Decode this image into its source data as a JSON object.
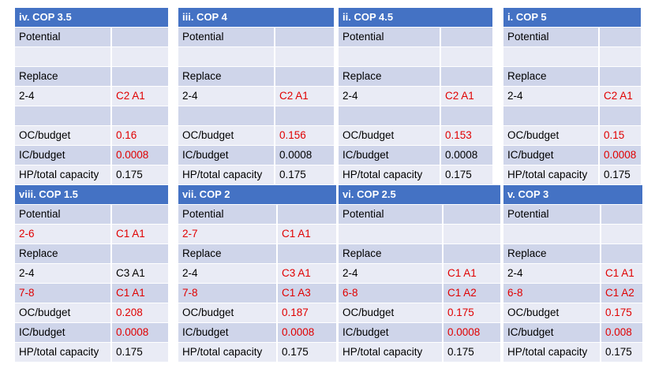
{
  "colors": {
    "header": "#4472c4",
    "row_shaded": "#cfd5ea",
    "row_light": "#e9ebf5",
    "highlight": "#e00000"
  },
  "panels": [
    {
      "title": "iv. COP 3.5",
      "rows": [
        {
          "label": "Potential",
          "value": ""
        },
        {
          "label": "",
          "value": ""
        },
        {
          "label": "Replace",
          "value": ""
        },
        {
          "label": "2-4",
          "value": "C2 A1",
          "value_red": true
        },
        {
          "label": "",
          "value": ""
        },
        {
          "label": "OC/budget",
          "value": "0.16",
          "value_red": true
        },
        {
          "label": "IC/budget",
          "value": "0.0008",
          "value_red": true
        },
        {
          "label": "HP/total capacity",
          "value": "0.175"
        }
      ]
    },
    {
      "title": "iii. COP 4",
      "rows": [
        {
          "label": "Potential",
          "value": ""
        },
        {
          "label": "",
          "value": ""
        },
        {
          "label": "Replace",
          "value": ""
        },
        {
          "label": "2-4",
          "value": "C2 A1",
          "value_red": true
        },
        {
          "label": "",
          "value": ""
        },
        {
          "label": "OC/budget",
          "value": "0.156",
          "value_red": true
        },
        {
          "label": "IC/budget",
          "value": "0.0008"
        },
        {
          "label": "HP/total capacity",
          "value": "0.175"
        }
      ]
    },
    {
      "title": "ii. COP 4.5",
      "rows": [
        {
          "label": "Potential",
          "value": ""
        },
        {
          "label": "",
          "value": ""
        },
        {
          "label": "Replace",
          "value": ""
        },
        {
          "label": "2-4",
          "value": "C2 A1",
          "value_red": true
        },
        {
          "label": "",
          "value": ""
        },
        {
          "label": "OC/budget",
          "value": "0.153",
          "value_red": true
        },
        {
          "label": "IC/budget",
          "value": "0.0008"
        },
        {
          "label": "HP/total capacity",
          "value": "0.175"
        }
      ]
    },
    {
      "title": "i. COP 5",
      "rows": [
        {
          "label": "Potential",
          "value": ""
        },
        {
          "label": "",
          "value": ""
        },
        {
          "label": "Replace",
          "value": ""
        },
        {
          "label": "2-4",
          "value": "C2 A1",
          "value_red": true
        },
        {
          "label": "",
          "value": ""
        },
        {
          "label": "OC/budget",
          "value": "0.15",
          "value_red": true
        },
        {
          "label": "IC/budget",
          "value": "0.0008",
          "value_red": true
        },
        {
          "label": "HP/total capacity",
          "value": "0.175"
        }
      ]
    },
    {
      "title": "viii. COP 1.5",
      "rows": [
        {
          "label": "Potential",
          "value": ""
        },
        {
          "label": "2-6",
          "value": "C1 A1",
          "label_red": true,
          "value_red": true
        },
        {
          "label": "Replace",
          "value": ""
        },
        {
          "label": "2-4",
          "value": "C3 A1"
        },
        {
          "label": "7-8",
          "value": "C1 A1",
          "label_red": true,
          "value_red": true
        },
        {
          "label": "OC/budget",
          "value": "0.208",
          "value_red": true
        },
        {
          "label": "IC/budget",
          "value": "0.0008",
          "value_red": true
        },
        {
          "label": "HP/total capacity",
          "value": "0.175"
        }
      ]
    },
    {
      "title": "vii. COP 2",
      "rows": [
        {
          "label": "Potential",
          "value": ""
        },
        {
          "label": "2-7",
          "value": "C1 A1",
          "label_red": true,
          "value_red": true
        },
        {
          "label": "Replace",
          "value": ""
        },
        {
          "label": "2-4",
          "value": "C3 A1",
          "value_red": true
        },
        {
          "label": "7-8",
          "value": "C1 A3",
          "label_red": true,
          "value_red": true
        },
        {
          "label": "OC/budget",
          "value": "0.187",
          "value_red": true
        },
        {
          "label": "IC/budget",
          "value": "0.0008",
          "value_red": true
        },
        {
          "label": "HP/total capacity",
          "value": "0.175"
        }
      ]
    },
    {
      "title": "vi. COP 2.5",
      "rows": [
        {
          "label": "Potential",
          "value": ""
        },
        {
          "label": "",
          "value": ""
        },
        {
          "label": "Replace",
          "value": ""
        },
        {
          "label": "2-4",
          "value": "C1 A1",
          "value_red": true
        },
        {
          "label": "6-8",
          "value": "C1 A2",
          "label_red": true,
          "value_red": true
        },
        {
          "label": "OC/budget",
          "value": "0.175",
          "value_red": true
        },
        {
          "label": "IC/budget",
          "value": "0.0008",
          "value_red": true
        },
        {
          "label": "HP/total capacity",
          "value": "0.175"
        }
      ]
    },
    {
      "title": "v. COP 3",
      "rows": [
        {
          "label": "Potential",
          "value": ""
        },
        {
          "label": "",
          "value": ""
        },
        {
          "label": "Replace",
          "value": ""
        },
        {
          "label": "2-4",
          "value": "C1 A1",
          "value_red": true
        },
        {
          "label": "6-8",
          "value": "C1 A2",
          "label_red": true,
          "value_red": true
        },
        {
          "label": "OC/budget",
          "value": "0.175",
          "value_red": true
        },
        {
          "label": "IC/budget",
          "value": "0.008",
          "value_red": true
        },
        {
          "label": "HP/total capacity",
          "value": "0.175"
        }
      ]
    }
  ]
}
